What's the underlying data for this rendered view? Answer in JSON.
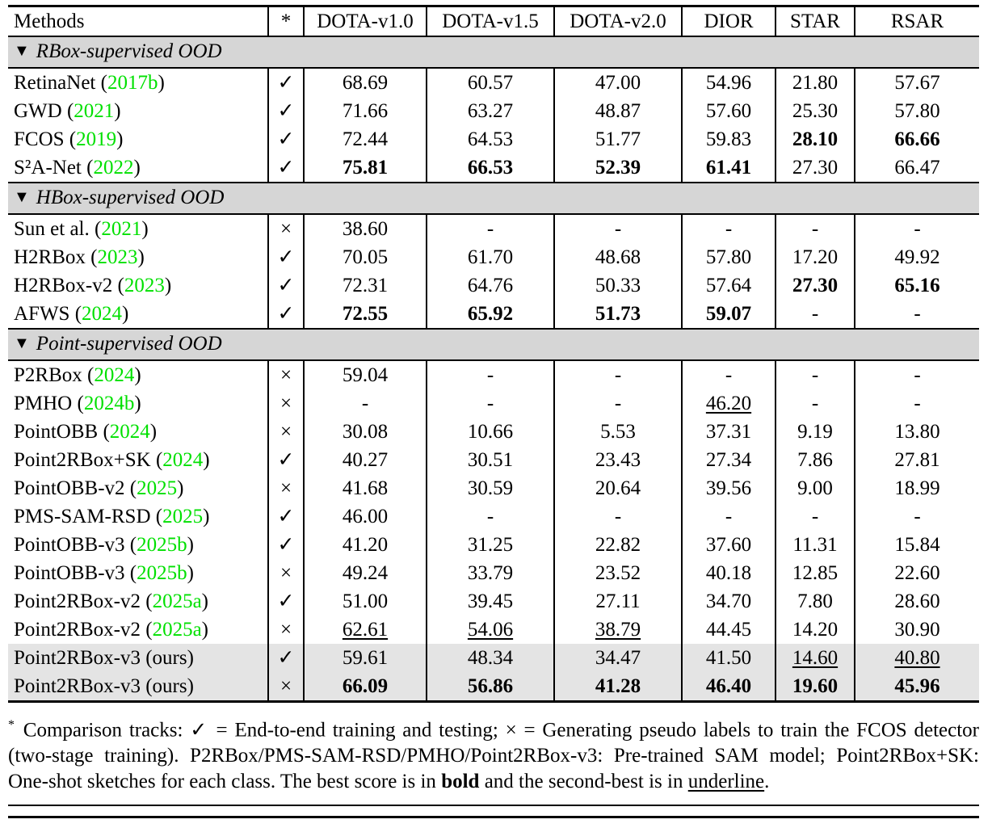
{
  "colors": {
    "citation_green": "#00e000",
    "section_bg": "#d6d6d6",
    "highlight_bg": "#e4e4e4"
  },
  "table": {
    "columns": [
      "Methods",
      "*",
      "DOTA-v1.0",
      "DOTA-v1.5",
      "DOTA-v2.0",
      "DIOR",
      "STAR",
      "RSAR"
    ],
    "sections": [
      {
        "marker": "▼",
        "title": "RBox-supervised OOD",
        "rows": [
          {
            "name": "RetinaNet",
            "cite": "2017b",
            "mark": "✓",
            "shaded": false,
            "cells": [
              [
                "68.69",
                ""
              ],
              [
                "60.57",
                ""
              ],
              [
                "47.00",
                ""
              ],
              [
                "54.96",
                ""
              ],
              [
                "21.80",
                ""
              ],
              [
                "57.67",
                ""
              ]
            ]
          },
          {
            "name": "GWD",
            "cite": "2021",
            "mark": "✓",
            "shaded": false,
            "cells": [
              [
                "71.66",
                ""
              ],
              [
                "63.27",
                ""
              ],
              [
                "48.87",
                ""
              ],
              [
                "57.60",
                ""
              ],
              [
                "25.30",
                ""
              ],
              [
                "57.80",
                ""
              ]
            ]
          },
          {
            "name": "FCOS",
            "cite": "2019",
            "mark": "✓",
            "shaded": false,
            "cells": [
              [
                "72.44",
                ""
              ],
              [
                "64.53",
                ""
              ],
              [
                "51.77",
                ""
              ],
              [
                "59.83",
                ""
              ],
              [
                "28.10",
                "b"
              ],
              [
                "66.66",
                "b"
              ]
            ]
          },
          {
            "name": "S²A-Net",
            "cite": "2022",
            "mark": "✓",
            "shaded": false,
            "cells": [
              [
                "75.81",
                "b"
              ],
              [
                "66.53",
                "b"
              ],
              [
                "52.39",
                "b"
              ],
              [
                "61.41",
                "b"
              ],
              [
                "27.30",
                ""
              ],
              [
                "66.47",
                ""
              ]
            ]
          }
        ]
      },
      {
        "marker": "▼",
        "title": "HBox-supervised OOD",
        "rows": [
          {
            "name": "Sun et al.",
            "cite": "2021",
            "mark": "×",
            "shaded": false,
            "cells": [
              [
                "38.60",
                ""
              ],
              [
                "-",
                ""
              ],
              [
                "-",
                ""
              ],
              [
                "-",
                ""
              ],
              [
                "-",
                ""
              ],
              [
                "-",
                ""
              ]
            ]
          },
          {
            "name": "H2RBox",
            "cite": "2023",
            "mark": "✓",
            "shaded": false,
            "cells": [
              [
                "70.05",
                ""
              ],
              [
                "61.70",
                ""
              ],
              [
                "48.68",
                ""
              ],
              [
                "57.80",
                ""
              ],
              [
                "17.20",
                ""
              ],
              [
                "49.92",
                ""
              ]
            ]
          },
          {
            "name": "H2RBox-v2",
            "cite": "2023",
            "mark": "✓",
            "shaded": false,
            "cells": [
              [
                "72.31",
                ""
              ],
              [
                "64.76",
                ""
              ],
              [
                "50.33",
                ""
              ],
              [
                "57.64",
                ""
              ],
              [
                "27.30",
                "b"
              ],
              [
                "65.16",
                "b"
              ]
            ]
          },
          {
            "name": "AFWS",
            "cite": "2024",
            "mark": "✓",
            "shaded": false,
            "cells": [
              [
                "72.55",
                "b"
              ],
              [
                "65.92",
                "b"
              ],
              [
                "51.73",
                "b"
              ],
              [
                "59.07",
                "b"
              ],
              [
                "-",
                ""
              ],
              [
                "-",
                ""
              ]
            ]
          }
        ]
      },
      {
        "marker": "▼",
        "title": "Point-supervised OOD",
        "rows": [
          {
            "name": "P2RBox",
            "cite": "2024",
            "mark": "×",
            "shaded": false,
            "cells": [
              [
                "59.04",
                ""
              ],
              [
                "-",
                ""
              ],
              [
                "-",
                ""
              ],
              [
                "-",
                ""
              ],
              [
                "-",
                ""
              ],
              [
                "-",
                ""
              ]
            ]
          },
          {
            "name": "PMHO",
            "cite": "2024b",
            "mark": "×",
            "shaded": false,
            "cells": [
              [
                "-",
                ""
              ],
              [
                "-",
                ""
              ],
              [
                "-",
                ""
              ],
              [
                "46.20",
                "u"
              ],
              [
                "-",
                ""
              ],
              [
                "-",
                ""
              ]
            ]
          },
          {
            "name": "PointOBB",
            "cite": "2024",
            "mark": "×",
            "shaded": false,
            "cells": [
              [
                "30.08",
                ""
              ],
              [
                "10.66",
                ""
              ],
              [
                "5.53",
                ""
              ],
              [
                "37.31",
                ""
              ],
              [
                "9.19",
                ""
              ],
              [
                "13.80",
                ""
              ]
            ]
          },
          {
            "name": "Point2RBox+SK",
            "cite": "2024",
            "mark": "✓",
            "shaded": false,
            "cells": [
              [
                "40.27",
                ""
              ],
              [
                "30.51",
                ""
              ],
              [
                "23.43",
                ""
              ],
              [
                "27.34",
                ""
              ],
              [
                "7.86",
                ""
              ],
              [
                "27.81",
                ""
              ]
            ]
          },
          {
            "name": "PointOBB-v2",
            "cite": "2025",
            "mark": "×",
            "shaded": false,
            "cells": [
              [
                "41.68",
                ""
              ],
              [
                "30.59",
                ""
              ],
              [
                "20.64",
                ""
              ],
              [
                "39.56",
                ""
              ],
              [
                "9.00",
                ""
              ],
              [
                "18.99",
                ""
              ]
            ]
          },
          {
            "name": "PMS-SAM-RSD",
            "cite": "2025",
            "mark": "✓",
            "shaded": false,
            "cells": [
              [
                "46.00",
                ""
              ],
              [
                "-",
                ""
              ],
              [
                "-",
                ""
              ],
              [
                "-",
                ""
              ],
              [
                "-",
                ""
              ],
              [
                "-",
                ""
              ]
            ]
          },
          {
            "name": "PointOBB-v3",
            "cite": "2025b",
            "mark": "✓",
            "shaded": false,
            "cells": [
              [
                "41.20",
                ""
              ],
              [
                "31.25",
                ""
              ],
              [
                "22.82",
                ""
              ],
              [
                "37.60",
                ""
              ],
              [
                "11.31",
                ""
              ],
              [
                "15.84",
                ""
              ]
            ]
          },
          {
            "name": "PointOBB-v3",
            "cite": "2025b",
            "mark": "×",
            "shaded": false,
            "cells": [
              [
                "49.24",
                ""
              ],
              [
                "33.79",
                ""
              ],
              [
                "23.52",
                ""
              ],
              [
                "40.18",
                ""
              ],
              [
                "12.85",
                ""
              ],
              [
                "22.60",
                ""
              ]
            ]
          },
          {
            "name": "Point2RBox-v2",
            "cite": "2025a",
            "mark": "✓",
            "shaded": false,
            "cells": [
              [
                "51.00",
                ""
              ],
              [
                "39.45",
                ""
              ],
              [
                "27.11",
                ""
              ],
              [
                "34.70",
                ""
              ],
              [
                "7.80",
                ""
              ],
              [
                "28.60",
                ""
              ]
            ]
          },
          {
            "name": "Point2RBox-v2",
            "cite": "2025a",
            "mark": "×",
            "shaded": false,
            "cells": [
              [
                "62.61",
                "u"
              ],
              [
                "54.06",
                "u"
              ],
              [
                "38.79",
                "u"
              ],
              [
                "44.45",
                ""
              ],
              [
                "14.20",
                ""
              ],
              [
                "30.90",
                ""
              ]
            ]
          },
          {
            "name": "Point2RBox-v3 (ours)",
            "cite": null,
            "mark": "✓",
            "shaded": true,
            "cells": [
              [
                "59.61",
                ""
              ],
              [
                "48.34",
                ""
              ],
              [
                "34.47",
                ""
              ],
              [
                "41.50",
                ""
              ],
              [
                "14.60",
                "u"
              ],
              [
                "40.80",
                "u"
              ]
            ]
          },
          {
            "name": "Point2RBox-v3 (ours)",
            "cite": null,
            "mark": "×",
            "shaded": true,
            "cells": [
              [
                "66.09",
                "b"
              ],
              [
                "56.86",
                "b"
              ],
              [
                "41.28",
                "b"
              ],
              [
                "46.40",
                "b"
              ],
              [
                "19.60",
                "b"
              ],
              [
                "45.96",
                "b"
              ]
            ]
          }
        ]
      }
    ]
  },
  "footnote": {
    "marker": "*",
    "segments": [
      {
        "t": " Comparison tracks: ✓ = End-to-end training and testing; × = Generating pseudo labels to train the FCOS detector (two-stage training). P2RBox/PMS-SAM-RSD/PMHO/Point2RBox-v3: Pre-trained SAM model; Point2RBox+SK: One-shot sketches for each class. The best score is in ",
        "s": ""
      },
      {
        "t": "bold",
        "s": "b"
      },
      {
        "t": " and the second-best is in ",
        "s": ""
      },
      {
        "t": "underline",
        "s": "u"
      },
      {
        "t": ".",
        "s": ""
      }
    ]
  }
}
